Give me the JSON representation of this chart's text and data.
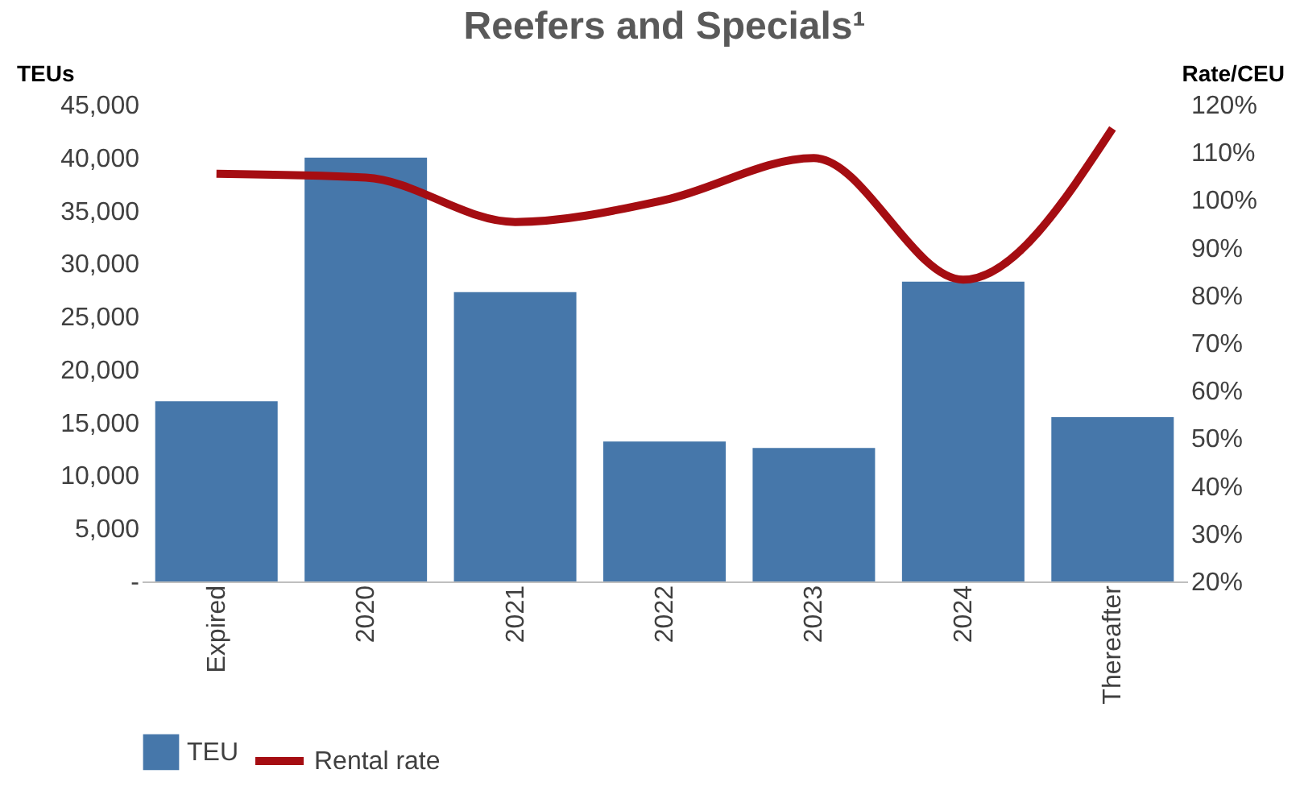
{
  "chart_data": {
    "type": "bar",
    "title": "Reefers and Specials¹",
    "ylabel": "TEUs",
    "y2label": "Rate/CEU",
    "categories": [
      "Expired",
      "2020",
      "2021",
      "2022",
      "2023",
      "2024",
      "Thereafter"
    ],
    "series": [
      {
        "name": "TEU",
        "color": "#4677aa",
        "values": [
          17000,
          40000,
          27300,
          13200,
          12600,
          28300,
          15500
        ]
      },
      {
        "name": "Rental rate",
        "type": "line",
        "axis": "y2",
        "color": "#a50d12",
        "values": [
          105.5,
          104.7,
          95.4,
          100,
          108.8,
          83.3,
          115
        ]
      }
    ],
    "ylim": [
      0,
      45000
    ],
    "yticks": [
      {
        "value": 0,
        "label": "-"
      },
      {
        "value": 5000,
        "label": "5,000"
      },
      {
        "value": 10000,
        "label": "10,000"
      },
      {
        "value": 15000,
        "label": "15,000"
      },
      {
        "value": 20000,
        "label": "20,000"
      },
      {
        "value": 25000,
        "label": "25,000"
      },
      {
        "value": 30000,
        "label": "30,000"
      },
      {
        "value": 35000,
        "label": "35,000"
      },
      {
        "value": 40000,
        "label": "40,000"
      },
      {
        "value": 45000,
        "label": "45,000"
      }
    ],
    "y2lim": [
      20,
      120
    ],
    "y2ticks": [
      {
        "value": 20,
        "label": "20%"
      },
      {
        "value": 30,
        "label": "30%"
      },
      {
        "value": 40,
        "label": "40%"
      },
      {
        "value": 50,
        "label": "50%"
      },
      {
        "value": 60,
        "label": "60%"
      },
      {
        "value": 70,
        "label": "70%"
      },
      {
        "value": 80,
        "label": "80%"
      },
      {
        "value": 90,
        "label": "90%"
      },
      {
        "value": 100,
        "label": "100%"
      },
      {
        "value": 110,
        "label": "110%"
      },
      {
        "value": 120,
        "label": "120%"
      }
    ],
    "grid": false,
    "legend": "bottom",
    "line_style": "solid",
    "marker": "none"
  }
}
